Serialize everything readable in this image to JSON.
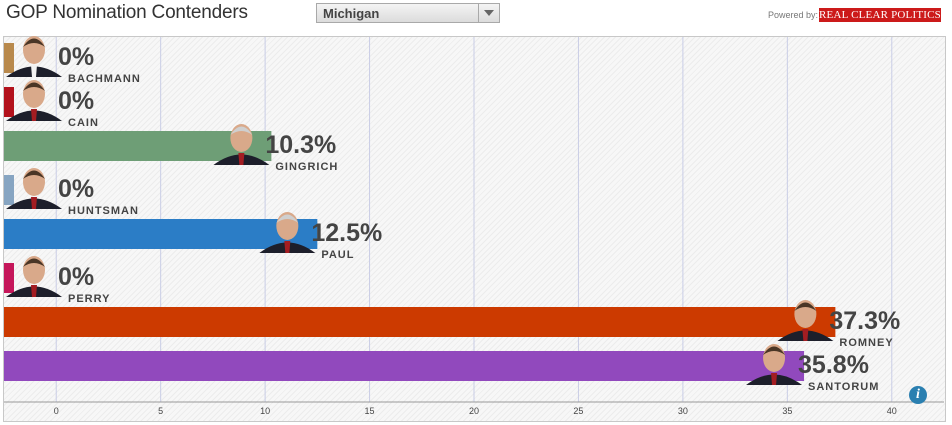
{
  "header": {
    "title": "GOP Nomination Contenders",
    "state_select": "Michigan",
    "powered_by": "Powered by:",
    "logo_text": "REAL CLEAR POLITICS"
  },
  "info_icon": "i",
  "chart_data": {
    "type": "bar",
    "orientation": "horizontal",
    "categories": [
      "BACHMANN",
      "CAIN",
      "GINGRICH",
      "HUNTSMAN",
      "PAUL",
      "PERRY",
      "ROMNEY",
      "SANTORUM"
    ],
    "values": [
      0,
      0,
      10.3,
      0,
      12.5,
      0,
      37.3,
      35.8
    ],
    "value_labels": [
      "0%",
      "0%",
      "10.3%",
      "0%",
      "12.5%",
      "0%",
      "37.3%",
      "35.8%"
    ],
    "colors": [
      "#b8894c",
      "#b3121c",
      "#6e9e76",
      "#87a5c2",
      "#2b7dc6",
      "#c5175b",
      "#cc3a00",
      "#9149bd"
    ],
    "x_ticks": [
      "0",
      "5",
      "10",
      "15",
      "20",
      "25",
      "30",
      "35",
      "40"
    ],
    "xlim": [
      -2.5,
      42.5
    ],
    "grid": true
  }
}
